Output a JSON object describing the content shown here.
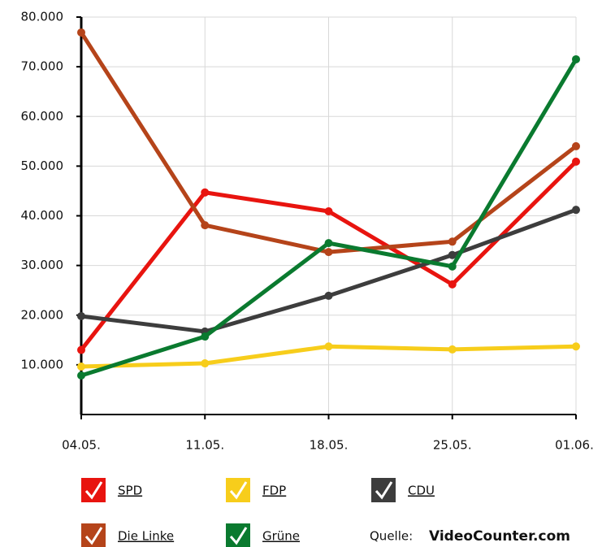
{
  "chart_data": {
    "type": "line",
    "categories": [
      "04.05.",
      "11.05.",
      "18.05.",
      "25.05.",
      "01.06."
    ],
    "series": [
      {
        "name": "SPD",
        "color": "#e8140f",
        "values": [
          13000,
          44700,
          40900,
          26200,
          50900
        ]
      },
      {
        "name": "FDP",
        "color": "#f7cd1b",
        "values": [
          9650,
          10300,
          13700,
          13100,
          13700
        ]
      },
      {
        "name": "CDU",
        "color": "#3d3d3d",
        "values": [
          19800,
          16700,
          23900,
          32100,
          41200
        ]
      },
      {
        "name": "Die Linke",
        "color": "#b5441a",
        "values": [
          76900,
          38100,
          32700,
          34800,
          54000
        ]
      },
      {
        "name": "Grüne",
        "color": "#0a7a2f",
        "values": [
          7850,
          15700,
          34500,
          29800,
          71500
        ]
      }
    ],
    "ylim": [
      0,
      80000
    ],
    "yticks": [
      {
        "value": 10000,
        "label": "10.000"
      },
      {
        "value": 20000,
        "label": "20.000"
      },
      {
        "value": 30000,
        "label": "30.000"
      },
      {
        "value": 40000,
        "label": "40.000"
      },
      {
        "value": 50000,
        "label": "50.000"
      },
      {
        "value": 60000,
        "label": "60.000"
      },
      {
        "value": 70000,
        "label": "70.000"
      },
      {
        "value": 80000,
        "label": "80.000"
      }
    ],
    "grid": true,
    "source_label": "Quelle:",
    "source": "VideoCounter.com"
  }
}
